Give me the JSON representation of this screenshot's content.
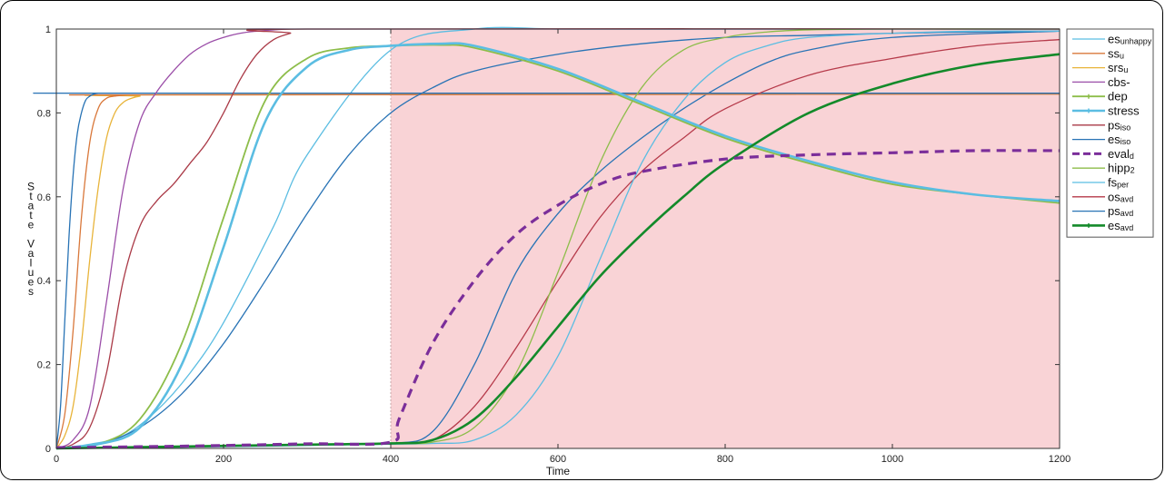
{
  "chart_data": {
    "type": "line",
    "title": "",
    "xlabel": "Time",
    "ylabel": "State Values",
    "xlim": [
      0,
      1200
    ],
    "ylim": [
      0,
      1
    ],
    "xticks": [
      "0",
      "200",
      "400",
      "600",
      "800",
      "1000",
      "1200"
    ],
    "yticks": [
      "0",
      "0.2",
      "0.4",
      "0.6",
      "0.8",
      "1"
    ],
    "shaded_region": {
      "x_start": 400,
      "x_end": 1200,
      "color": "#f9d3d6"
    },
    "legend_placement": "right",
    "series": [
      {
        "name": "es",
        "sub": "unhappy",
        "color": "#5bbde2",
        "width": 1.3,
        "dash": "",
        "marker": "none",
        "x": [
          0,
          40,
          80,
          120,
          160,
          200,
          260,
          300,
          400,
          500,
          600,
          700,
          800,
          900,
          1000,
          1100,
          1200
        ],
        "y": [
          0,
          0.01,
          0.03,
          0.09,
          0.18,
          0.3,
          0.53,
          0.7,
          0.95,
          1,
          1,
          1,
          1,
          1,
          1,
          1,
          1
        ]
      },
      {
        "name": "ss",
        "sub": "u",
        "color": "#d9783b",
        "width": 1.3,
        "dash": "",
        "marker": "none",
        "x": [
          0,
          10,
          20,
          30,
          40,
          50,
          60,
          70,
          80,
          90,
          100,
          1200
        ],
        "y": [
          0,
          0.08,
          0.28,
          0.55,
          0.73,
          0.81,
          0.835,
          0.84,
          0.842,
          0.843,
          0.843,
          0.845
        ]
      },
      {
        "name": "srs",
        "sub": "u",
        "color": "#e8b43a",
        "width": 1.3,
        "dash": "",
        "marker": "none",
        "x": [
          0,
          10,
          20,
          30,
          40,
          50,
          60,
          70,
          80,
          90,
          100,
          120,
          1200
        ],
        "y": [
          0,
          0.03,
          0.1,
          0.25,
          0.45,
          0.62,
          0.74,
          0.8,
          0.825,
          0.835,
          0.84,
          0.843,
          0.845
        ]
      },
      {
        "name": "cbs-",
        "sub": "",
        "color": "#9b4ea8",
        "width": 1.3,
        "dash": "",
        "marker": "none",
        "x": [
          0,
          20,
          40,
          60,
          80,
          100,
          120,
          140,
          160,
          180,
          200,
          220,
          240,
          260,
          280,
          300,
          1200
        ],
        "y": [
          0,
          0.02,
          0.1,
          0.35,
          0.62,
          0.78,
          0.85,
          0.9,
          0.94,
          0.965,
          0.98,
          0.99,
          0.995,
          0.998,
          1,
          1,
          1
        ]
      },
      {
        "name": "dep",
        "sub": "",
        "color": "#8dbd4a",
        "width": 1.8,
        "dash": "",
        "marker": "tick",
        "x": [
          0,
          50,
          100,
          150,
          200,
          250,
          300,
          350,
          400,
          460,
          500,
          600,
          700,
          800,
          900,
          1000,
          1100,
          1200
        ],
        "y": [
          0,
          0.01,
          0.07,
          0.25,
          0.55,
          0.83,
          0.93,
          0.955,
          0.96,
          0.962,
          0.955,
          0.9,
          0.82,
          0.74,
          0.68,
          0.63,
          0.605,
          0.585
        ]
      },
      {
        "name": "stress",
        "sub": "",
        "color": "#5bbde2",
        "width": 2.6,
        "dash": "",
        "marker": "tick",
        "x": [
          0,
          50,
          100,
          150,
          200,
          250,
          300,
          350,
          400,
          460,
          500,
          600,
          700,
          800,
          900,
          1000,
          1100,
          1200
        ],
        "y": [
          0,
          0.01,
          0.05,
          0.2,
          0.48,
          0.78,
          0.91,
          0.95,
          0.96,
          0.965,
          0.96,
          0.905,
          0.825,
          0.745,
          0.685,
          0.635,
          0.605,
          0.59
        ]
      },
      {
        "name": "ps",
        "sub": "iso",
        "color": "#aa3a47",
        "width": 1.3,
        "dash": "",
        "marker": "none",
        "x": [
          0,
          20,
          40,
          60,
          80,
          100,
          120,
          140,
          160,
          180,
          200,
          220,
          240,
          260,
          280,
          300,
          1200
        ],
        "y": [
          0,
          0.01,
          0.05,
          0.18,
          0.4,
          0.53,
          0.59,
          0.63,
          0.68,
          0.73,
          0.8,
          0.88,
          0.94,
          0.975,
          0.99,
          1,
          1
        ]
      },
      {
        "name": "es",
        "sub": "iso",
        "color": "#2873b5",
        "width": 1.3,
        "dash": "",
        "marker": "none",
        "x": [
          0,
          5,
          10,
          15,
          20,
          25,
          30,
          35,
          40,
          45,
          50,
          60,
          1200
        ],
        "y": [
          0,
          0.1,
          0.3,
          0.5,
          0.65,
          0.75,
          0.8,
          0.83,
          0.84,
          0.845,
          0.847,
          0.847,
          0.847
        ]
      },
      {
        "name": "eval",
        "sub": "d",
        "color": "#7b2e9a",
        "width": 3.2,
        "dash": "10,7",
        "marker": "none",
        "x": [
          0,
          100,
          200,
          300,
          400,
          410,
          450,
          500,
          550,
          600,
          650,
          700,
          800,
          900,
          1000,
          1100,
          1200
        ],
        "y": [
          0.002,
          0.004,
          0.007,
          0.011,
          0.015,
          0.07,
          0.25,
          0.4,
          0.51,
          0.58,
          0.63,
          0.66,
          0.69,
          0.7,
          0.705,
          0.71,
          0.71
        ]
      },
      {
        "name": "hipp",
        "sub": "2",
        "color": "#8dbd4a",
        "width": 1.3,
        "dash": "",
        "marker": "none",
        "x": [
          0,
          100,
          200,
          300,
          400,
          450,
          500,
          550,
          600,
          650,
          700,
          750,
          800,
          850,
          900,
          1000,
          1200
        ],
        "y": [
          0,
          0.003,
          0.006,
          0.009,
          0.012,
          0.015,
          0.05,
          0.18,
          0.42,
          0.68,
          0.86,
          0.95,
          0.98,
          0.993,
          0.998,
          1,
          1
        ]
      },
      {
        "name": "fs",
        "sub": "per",
        "color": "#5bbde2",
        "width": 1.3,
        "dash": "",
        "marker": "none",
        "x": [
          0,
          100,
          200,
          300,
          400,
          450,
          500,
          550,
          600,
          650,
          700,
          750,
          800,
          850,
          900,
          1000,
          1100,
          1200
        ],
        "y": [
          0,
          0.002,
          0.004,
          0.007,
          0.01,
          0.012,
          0.02,
          0.08,
          0.22,
          0.45,
          0.68,
          0.83,
          0.92,
          0.96,
          0.98,
          0.99,
          0.995,
          0.995
        ]
      },
      {
        "name": "os",
        "sub": "avd",
        "color": "#b63a4a",
        "width": 1.3,
        "dash": "",
        "marker": "none",
        "x": [
          0,
          100,
          200,
          300,
          400,
          450,
          500,
          550,
          600,
          650,
          700,
          750,
          800,
          900,
          1000,
          1100,
          1200
        ],
        "y": [
          0,
          0.003,
          0.006,
          0.009,
          0.012,
          0.02,
          0.1,
          0.24,
          0.4,
          0.55,
          0.66,
          0.74,
          0.81,
          0.89,
          0.93,
          0.96,
          0.975
        ]
      },
      {
        "name": "ps",
        "sub": "avd",
        "color": "#2873b5",
        "width": 1.3,
        "dash": "",
        "marker": "none",
        "x": [
          0,
          50,
          100,
          150,
          200,
          250,
          300,
          350,
          400,
          450,
          500,
          600,
          700,
          800,
          900,
          1000,
          1100,
          1200
        ],
        "y": [
          0,
          0.01,
          0.05,
          0.13,
          0.25,
          0.4,
          0.56,
          0.7,
          0.8,
          0.86,
          0.9,
          0.94,
          0.965,
          0.98,
          0.985,
          0.99,
          0.993,
          0.995
        ]
      },
      {
        "name": "es",
        "sub": "avd",
        "color": "#138a2a",
        "width": 2.6,
        "dash": "",
        "marker": "tick",
        "x": [
          0,
          100,
          200,
          300,
          400,
          450,
          500,
          550,
          600,
          650,
          700,
          750,
          800,
          900,
          1000,
          1100,
          1200
        ],
        "y": [
          0,
          0.003,
          0.006,
          0.009,
          0.012,
          0.02,
          0.07,
          0.17,
          0.29,
          0.41,
          0.51,
          0.6,
          0.68,
          0.8,
          0.87,
          0.915,
          0.94
        ]
      },
      {
        "name": "",
        "sub": "",
        "color": "#2873b5",
        "width": 1.3,
        "dash": "",
        "marker": "none",
        "x": [
          0,
          100,
          200,
          300,
          400,
          450,
          500,
          550,
          600,
          650,
          700,
          750,
          800,
          850,
          900,
          1000,
          1200
        ],
        "y": [
          0,
          0.003,
          0.006,
          0.009,
          0.012,
          0.04,
          0.2,
          0.42,
          0.56,
          0.66,
          0.74,
          0.81,
          0.87,
          0.92,
          0.95,
          0.98,
          0.995
        ]
      }
    ]
  }
}
